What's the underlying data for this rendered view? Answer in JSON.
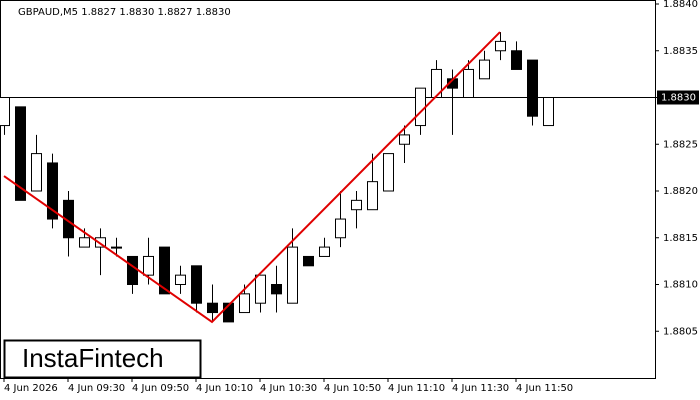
{
  "chart_data": {
    "type": "candlestick",
    "title": "GBPAUD,M5  1.8827 1.8830 1.8827 1.8830",
    "categories": [
      "4 Jun 2026",
      null,
      null,
      null,
      "4 Jun 09:30",
      null,
      null,
      null,
      "4 Jun 09:50",
      null,
      null,
      null,
      "4 Jun 10:10",
      null,
      null,
      null,
      "4 Jun 10:30",
      null,
      null,
      null,
      "4 Jun 10:50",
      null,
      null,
      null,
      "4 Jun 11:10",
      null,
      null,
      null,
      "4 Jun 11:30",
      null,
      null,
      null,
      "4 Jun 11:50",
      null,
      null
    ],
    "open": [
      1.8827,
      1.8829,
      1.882,
      1.8823,
      1.8819,
      1.8814,
      1.8814,
      1.8814,
      1.8813,
      1.8811,
      1.8814,
      1.881,
      1.8812,
      1.8808,
      1.8808,
      1.8807,
      1.8808,
      1.881,
      1.8808,
      1.8813,
      1.8813,
      1.8815,
      1.8818,
      1.8818,
      1.882,
      1.8825,
      1.8827,
      1.883,
      1.8832,
      1.883,
      1.8832,
      1.8835,
      1.8835,
      1.8834,
      1.8827
    ],
    "high": [
      1.883,
      1.8829,
      1.8826,
      1.8824,
      1.882,
      1.8816,
      1.8816,
      1.8815,
      1.8813,
      1.8815,
      1.8814,
      1.8812,
      1.8812,
      1.881,
      1.8808,
      1.881,
      1.8811,
      1.8812,
      1.8816,
      1.8813,
      1.8815,
      1.882,
      1.882,
      1.8824,
      1.8824,
      1.8827,
      1.8831,
      1.8834,
      1.8833,
      1.8834,
      1.8835,
      1.8837,
      1.8836,
      1.8834,
      1.883
    ],
    "low": [
      1.8826,
      1.8819,
      1.882,
      1.8816,
      1.8813,
      1.8814,
      1.8811,
      1.8813,
      1.8809,
      1.881,
      1.8809,
      1.8809,
      1.8807,
      1.8806,
      1.8806,
      1.8807,
      1.8807,
      1.8807,
      1.8808,
      1.8812,
      1.8813,
      1.8814,
      1.8816,
      1.8818,
      1.882,
      1.8823,
      1.8826,
      1.883,
      1.8826,
      1.883,
      1.8832,
      1.8834,
      1.8833,
      1.8827,
      1.8827
    ],
    "close": [
      1.883,
      1.8819,
      1.8824,
      1.8817,
      1.8815,
      1.8815,
      1.8815,
      1.8814,
      1.881,
      1.8813,
      1.8809,
      1.8811,
      1.8808,
      1.8807,
      1.8806,
      1.8809,
      1.8811,
      1.8809,
      1.8814,
      1.8812,
      1.8814,
      1.8817,
      1.8819,
      1.8821,
      1.8824,
      1.8826,
      1.8831,
      1.8833,
      1.8831,
      1.8833,
      1.8834,
      1.8836,
      1.8833,
      1.8828,
      1.883
    ],
    "up_color": "#ffffff",
    "down_color": "#000000",
    "ylim": [
      1.88,
      1.884
    ],
    "yticks": [
      {
        "value": 1.8805,
        "label": "1.8805"
      },
      {
        "value": 1.881,
        "label": "1.8810"
      },
      {
        "value": 1.8815,
        "label": "1.8815"
      },
      {
        "value": 1.882,
        "label": "1.8820"
      },
      {
        "value": 1.8825,
        "label": "1.8825"
      },
      {
        "value": 1.883,
        "label": "1.8830"
      },
      {
        "value": 1.8835,
        "label": "1.8835"
      },
      {
        "value": 1.884,
        "label": "1.8840"
      }
    ],
    "current_price": {
      "value": 1.883,
      "label": "1.8830"
    },
    "pattern": {
      "color": "#e00000",
      "index": [
        0,
        13,
        31
      ],
      "price": [
        1.88216,
        1.8806,
        1.8837
      ]
    }
  },
  "logo": "InstaFintech"
}
